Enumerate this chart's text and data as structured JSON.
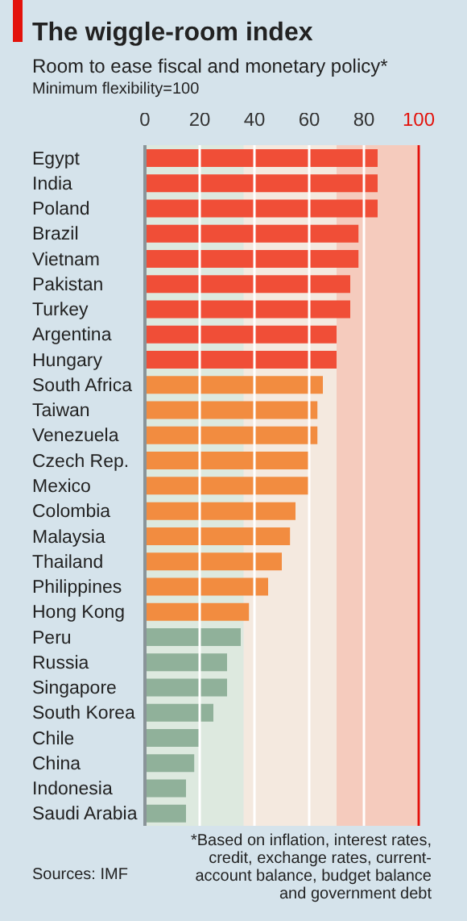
{
  "chart_data": {
    "type": "bar",
    "orientation": "horizontal",
    "title": "The wiggle-room index",
    "subtitle": "Room to ease fiscal and monetary policy*",
    "annotations": [
      "Minimum flexibility=100",
      "Sources: IMF",
      "*Based on inflation, interest rates, credit, exchange rates, current-account balance, budget balance and government debt"
    ],
    "categories": [
      "Egypt",
      "India",
      "Poland",
      "Brazil",
      "Vietnam",
      "Pakistan",
      "Turkey",
      "Argentina",
      "Hungary",
      "South Africa",
      "Taiwan",
      "Venezuela",
      "Czech Rep.",
      "Mexico",
      "Colombia",
      "Malaysia",
      "Thailand",
      "Philippines",
      "Hong Kong",
      "Peru",
      "Russia",
      "Singapore",
      "South Korea",
      "Chile",
      "China",
      "Indonesia",
      "Saudi Arabia"
    ],
    "values": [
      85,
      85,
      85,
      78,
      78,
      75,
      75,
      70,
      70,
      65,
      63,
      63,
      60,
      60,
      55,
      53,
      50,
      45,
      38,
      35,
      30,
      30,
      25,
      20,
      18,
      15,
      15
    ],
    "colors": [
      "#f04e37",
      "#f04e37",
      "#f04e37",
      "#f04e37",
      "#f04e37",
      "#f04e37",
      "#f04e37",
      "#f04e37",
      "#f04e37",
      "#f28c40",
      "#f28c40",
      "#f28c40",
      "#f28c40",
      "#f28c40",
      "#f28c40",
      "#f28c40",
      "#f28c40",
      "#f28c40",
      "#f28c40",
      "#90b19a",
      "#90b19a",
      "#90b19a",
      "#90b19a",
      "#90b19a",
      "#90b19a",
      "#90b19a",
      "#90b19a"
    ],
    "xlim": [
      0,
      100
    ],
    "xticks": [
      0,
      20,
      40,
      60,
      80,
      100
    ],
    "grid": "x",
    "bands": [
      {
        "axis": "x",
        "from": 0,
        "to": 36,
        "color": "#dde9df"
      },
      {
        "axis": "x",
        "from": 36,
        "to": 70,
        "color": "#f4e9df"
      },
      {
        "axis": "x",
        "from": 70,
        "to": 100,
        "color": "#f5cbbd"
      }
    ],
    "ref_lines": [
      {
        "axis": "x",
        "value": 100,
        "color": "#e3120b"
      }
    ]
  }
}
